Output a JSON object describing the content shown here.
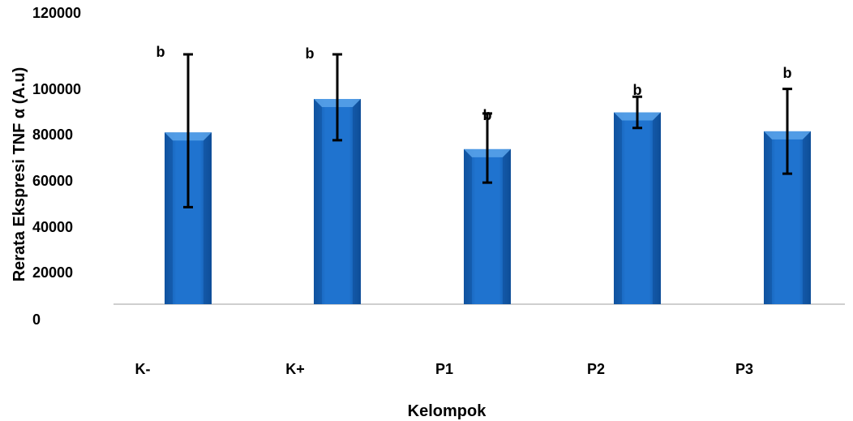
{
  "chart_data": {
    "type": "bar",
    "categories": [
      "K-",
      "K+",
      "P1",
      "P2",
      "P3"
    ],
    "values": [
      77000,
      92000,
      69500,
      86000,
      77500
    ],
    "error_upper": [
      112000,
      112000,
      85500,
      93000,
      96500
    ],
    "error_lower": [
      43500,
      73500,
      54500,
      79000,
      58500
    ],
    "annotations": [
      "b",
      "b",
      "b",
      "b",
      "b"
    ],
    "xlabel": "Kelompok",
    "ylabel": "Rerata Ekspresi TNF α (A.u)",
    "ylim": [
      0,
      120000
    ],
    "yticks": [
      "0",
      "20000",
      "40000",
      "60000",
      "80000",
      "100000",
      "120000"
    ],
    "grid": false,
    "colors": {
      "bar": "#1f6fc5",
      "bar_light": "#5aa3ea",
      "bar_dark": "#0f4f99",
      "axis": "#bfbfbf",
      "error": "#000000"
    }
  }
}
